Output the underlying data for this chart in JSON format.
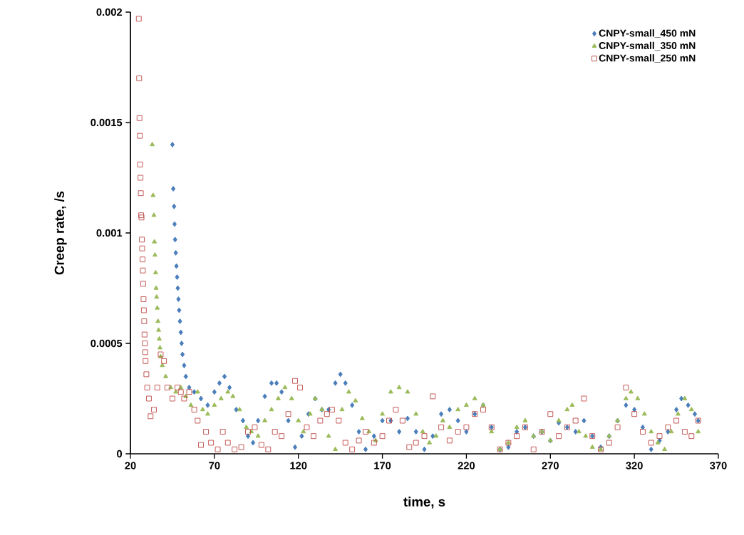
{
  "chart_data": {
    "type": "scatter",
    "xlabel": "time, s",
    "ylabel": "Creep rate, /s",
    "xlim": [
      20,
      370
    ],
    "xticks": [
      20,
      70,
      120,
      170,
      220,
      270,
      320,
      370
    ],
    "ylim": [
      0,
      0.002
    ],
    "yticks": [
      0,
      0.0005,
      0.001,
      0.0015,
      0.002
    ],
    "legend": "top right",
    "grid": false,
    "series": [
      {
        "name": "CNPY-small_450 mN",
        "color": "#4a7ebb",
        "marker": "diamond",
        "x": [
          45,
          45.5,
          46,
          46.3,
          46.6,
          47,
          47.4,
          47.8,
          48.2,
          48.6,
          49,
          49.5,
          50,
          50.5,
          51,
          52,
          53,
          55,
          58,
          62,
          66,
          70,
          73,
          76,
          79,
          83,
          87,
          90,
          93,
          96,
          100,
          104,
          107,
          110,
          114,
          118,
          122,
          126,
          130,
          134,
          138,
          142,
          145,
          148,
          152,
          156,
          160,
          165,
          170,
          175,
          180,
          185,
          190,
          195,
          200,
          205,
          210,
          215,
          220,
          225,
          230,
          235,
          240,
          245,
          250,
          255,
          260,
          265,
          270,
          275,
          280,
          285,
          290,
          295,
          300,
          305,
          310,
          315,
          320,
          325,
          330,
          335,
          340,
          345,
          348,
          352,
          356,
          358
        ],
        "values": [
          0.0014,
          0.0012,
          0.00112,
          0.00104,
          0.00097,
          0.00091,
          0.00085,
          0.0008,
          0.00075,
          0.0007,
          0.00065,
          0.0006,
          0.00055,
          0.0005,
          0.00045,
          0.0004,
          0.00035,
          0.0003,
          0.00028,
          0.00025,
          0.00022,
          0.00028,
          0.00032,
          0.00035,
          0.0003,
          0.0002,
          0.00015,
          8e-05,
          5e-05,
          0.00015,
          0.00026,
          0.00032,
          0.00032,
          0.00028,
          0.00015,
          3e-05,
          8e-05,
          0.00018,
          0.00025,
          0.0002,
          0.0002,
          0.00032,
          0.00036,
          0.00032,
          0.00022,
          0.0001,
          2e-05,
          8e-05,
          0.00015,
          0.00015,
          0.0001,
          0.00016,
          0.0001,
          2e-05,
          8e-05,
          0.00018,
          0.0002,
          0.00015,
          0.0001,
          0.00018,
          0.00022,
          0.00012,
          2e-05,
          3e-05,
          0.0001,
          0.00012,
          8e-05,
          0.0001,
          6e-05,
          0.00014,
          0.00012,
          0.0001,
          0.00015,
          8e-05,
          3e-05,
          8e-05,
          0.00015,
          0.00022,
          0.0002,
          0.00012,
          2e-05,
          6e-05,
          0.0001,
          0.0002,
          0.00025,
          0.00022,
          0.00018,
          0.00015
        ]
      },
      {
        "name": "CNPY-small_350 mN",
        "color": "#9bbb59",
        "marker": "triangle",
        "x": [
          33,
          33.5,
          34,
          34.3,
          34.6,
          35,
          35.3,
          35.6,
          36,
          36.4,
          36.8,
          37.2,
          37.6,
          38,
          39,
          41,
          44,
          47,
          50,
          53,
          56,
          60,
          63,
          66,
          70,
          74,
          78,
          81,
          85,
          89,
          92,
          96,
          100,
          104,
          108,
          112,
          116,
          120,
          123,
          127,
          130,
          134,
          138,
          142,
          146,
          150,
          154,
          158,
          162,
          166,
          170,
          175,
          180,
          185,
          190,
          194,
          198,
          202,
          206,
          210,
          215,
          220,
          225,
          230,
          235,
          240,
          245,
          250,
          255,
          260,
          265,
          270,
          275,
          280,
          283,
          287,
          291,
          295,
          300,
          305,
          310,
          315,
          318,
          322,
          326,
          330,
          334,
          338,
          342,
          346,
          350,
          354,
          358
        ],
        "values": [
          0.0014,
          0.00117,
          0.00108,
          0.00096,
          0.0009,
          0.00082,
          0.00075,
          0.00071,
          0.00066,
          0.0006,
          0.00056,
          0.00052,
          0.00048,
          0.00044,
          0.0004,
          0.00035,
          0.0003,
          0.00028,
          0.0003,
          0.00026,
          0.00022,
          0.00028,
          0.0002,
          0.00018,
          0.00022,
          0.00025,
          0.00028,
          0.00026,
          0.0002,
          0.00012,
          0.0001,
          8e-05,
          0.00015,
          0.0002,
          0.00025,
          0.0003,
          0.00025,
          0.00015,
          0.0001,
          0.00018,
          0.00025,
          0.0002,
          8e-05,
          2e-05,
          0.0002,
          0.00028,
          0.00024,
          0.00016,
          0.0001,
          6e-05,
          0.00018,
          0.00028,
          0.0003,
          0.00028,
          0.00018,
          0.0001,
          5e-05,
          8e-05,
          0.00015,
          0.00012,
          0.0002,
          0.00022,
          0.00025,
          0.00022,
          0.0001,
          2e-05,
          5e-05,
          0.00012,
          0.00015,
          8e-05,
          0.0001,
          6e-05,
          0.00015,
          0.0002,
          0.00022,
          0.0001,
          8e-05,
          3e-05,
          2e-05,
          8e-05,
          0.00015,
          0.00025,
          0.00028,
          0.00025,
          0.00018,
          0.0001,
          5e-05,
          2e-05,
          0.0001,
          0.00018,
          0.00025,
          0.0002,
          0.0001
        ]
      },
      {
        "name": "CNPY-small_250 mN",
        "color": "#c0504d",
        "marker": "square",
        "x": [
          25,
          25.2,
          25.4,
          25.6,
          25.8,
          26,
          26.2,
          26.4,
          26.6,
          26.8,
          27,
          27.2,
          27.4,
          27.6,
          27.8,
          28,
          28.2,
          28.4,
          28.6,
          28.8,
          29,
          29.5,
          30,
          31,
          32,
          34,
          36,
          38,
          40,
          42,
          45,
          48,
          50,
          52,
          55,
          58,
          60,
          62,
          65,
          68,
          72,
          75,
          78,
          82,
          86,
          90,
          94,
          98,
          102,
          106,
          110,
          114,
          118,
          121,
          125,
          129,
          133,
          137,
          140,
          144,
          148,
          152,
          156,
          160,
          165,
          170,
          174,
          178,
          182,
          186,
          190,
          195,
          200,
          205,
          210,
          215,
          220,
          225,
          230,
          235,
          240,
          245,
          250,
          255,
          260,
          265,
          270,
          275,
          280,
          285,
          290,
          295,
          300,
          305,
          310,
          315,
          320,
          325,
          330,
          335,
          340,
          345,
          350,
          354,
          358
        ],
        "values": [
          0.00197,
          0.0017,
          0.00152,
          0.00144,
          0.00131,
          0.00125,
          0.00118,
          0.00108,
          0.00107,
          0.00097,
          0.00093,
          0.00088,
          0.00083,
          0.00077,
          0.0007,
          0.00065,
          0.0006,
          0.00054,
          0.0005,
          0.00046,
          0.00042,
          0.00036,
          0.0003,
          0.00025,
          0.00017,
          0.0002,
          0.0003,
          0.00045,
          0.00042,
          0.0003,
          0.00025,
          0.0003,
          0.00028,
          0.00025,
          0.00028,
          0.0002,
          0.00015,
          4e-05,
          0.0001,
          5e-05,
          2e-05,
          0.0001,
          5e-05,
          2e-05,
          3e-05,
          0.0001,
          0.00012,
          4e-05,
          2e-05,
          0.0001,
          8e-05,
          0.00018,
          0.00033,
          0.0003,
          0.00012,
          8e-05,
          0.00015,
          0.00018,
          0.0002,
          0.00015,
          5e-05,
          2e-05,
          6e-05,
          0.0001,
          5e-05,
          8e-05,
          0.00015,
          0.0002,
          0.00015,
          3e-05,
          5e-05,
          8e-05,
          0.00026,
          0.00012,
          6e-05,
          0.0001,
          0.00012,
          0.00018,
          0.0002,
          0.00012,
          2e-05,
          5e-05,
          8e-05,
          0.00012,
          2e-05,
          0.0001,
          0.00018,
          8e-05,
          0.00012,
          0.00015,
          0.00025,
          8e-05,
          2e-05,
          5e-05,
          0.00012,
          0.0003,
          0.00018,
          0.0001,
          5e-05,
          8e-05,
          0.00012,
          0.00015,
          0.0001,
          8e-05,
          0.00015
        ]
      }
    ]
  }
}
